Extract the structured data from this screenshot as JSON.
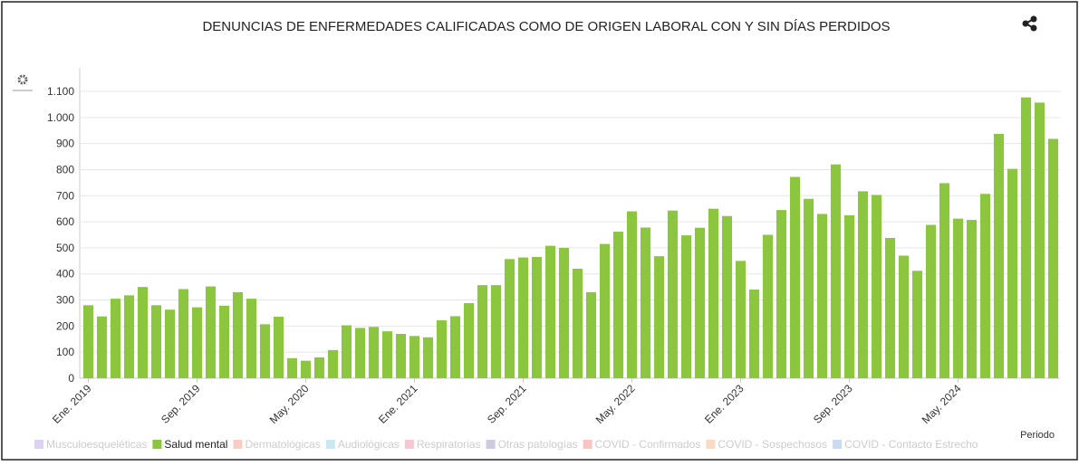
{
  "chart_data": {
    "type": "bar",
    "title": "DENUNCIAS DE ENFERMEDADES CALIFICADAS COMO DE ORIGEN LABORAL CON Y SIN DÍAS PERDIDOS",
    "x_label": "Periodo",
    "categories": [
      "Ene. 2019",
      null,
      null,
      null,
      null,
      null,
      null,
      null,
      "Sep. 2019",
      null,
      null,
      null,
      null,
      null,
      null,
      null,
      "May. 2020",
      null,
      null,
      null,
      null,
      null,
      null,
      null,
      "Ene. 2021",
      null,
      null,
      null,
      null,
      null,
      null,
      null,
      "Sep. 2021",
      null,
      null,
      null,
      null,
      null,
      null,
      null,
      "May. 2022",
      null,
      null,
      null,
      null,
      null,
      null,
      null,
      "Ene. 2023",
      null,
      null,
      null,
      null,
      null,
      null,
      null,
      "Sep. 2023",
      null,
      null,
      null,
      null,
      null,
      null,
      null,
      "May. 2024",
      null,
      null,
      null,
      null,
      null,
      null,
      null
    ],
    "series": [
      {
        "name": "Salud mental",
        "color": "#8cc63f",
        "values": [
          280,
          237,
          305,
          318,
          350,
          280,
          263,
          342,
          272,
          352,
          278,
          330,
          305,
          207,
          236,
          77,
          67,
          80,
          108,
          203,
          193,
          197,
          180,
          170,
          162,
          157,
          222,
          238,
          288,
          357,
          357,
          457,
          463,
          465,
          508,
          500,
          420,
          330,
          515,
          562,
          640,
          578,
          468,
          643,
          548,
          577,
          650,
          622,
          450,
          340,
          550,
          645,
          772,
          688,
          630,
          820,
          625,
          717,
          703,
          538,
          470,
          412,
          588,
          748,
          612,
          607,
          707,
          937,
          803,
          1077,
          1057,
          918
        ]
      }
    ],
    "legend": [
      {
        "name": "Musculoesqueléticas",
        "color": "#dcd3f2",
        "hidden": true
      },
      {
        "name": "Salud mental",
        "color": "#8cc63f",
        "hidden": false
      },
      {
        "name": "Dermatológicas",
        "color": "#f8cdc4",
        "hidden": true
      },
      {
        "name": "Audiológicas",
        "color": "#c9e8f2",
        "hidden": true
      },
      {
        "name": "Respiratorias",
        "color": "#f6c8d3",
        "hidden": true
      },
      {
        "name": "Otras patologías",
        "color": "#cbcbe2",
        "hidden": true
      },
      {
        "name": "COVID - Confirmados",
        "color": "#f8c4c4",
        "hidden": true
      },
      {
        "name": "COVID - Sospechosos",
        "color": "#f9dbc5",
        "hidden": true
      },
      {
        "name": "COVID - Contacto Estrecho",
        "color": "#cadbf1",
        "hidden": true
      }
    ],
    "ylim": [
      0,
      1100
    ],
    "yticks": [
      0,
      100,
      200,
      300,
      400,
      500,
      600,
      700,
      800,
      900,
      {
        "value": 1000,
        "label": "1.000"
      },
      {
        "value": 1100,
        "label": "1.100"
      }
    ],
    "grid": true
  }
}
